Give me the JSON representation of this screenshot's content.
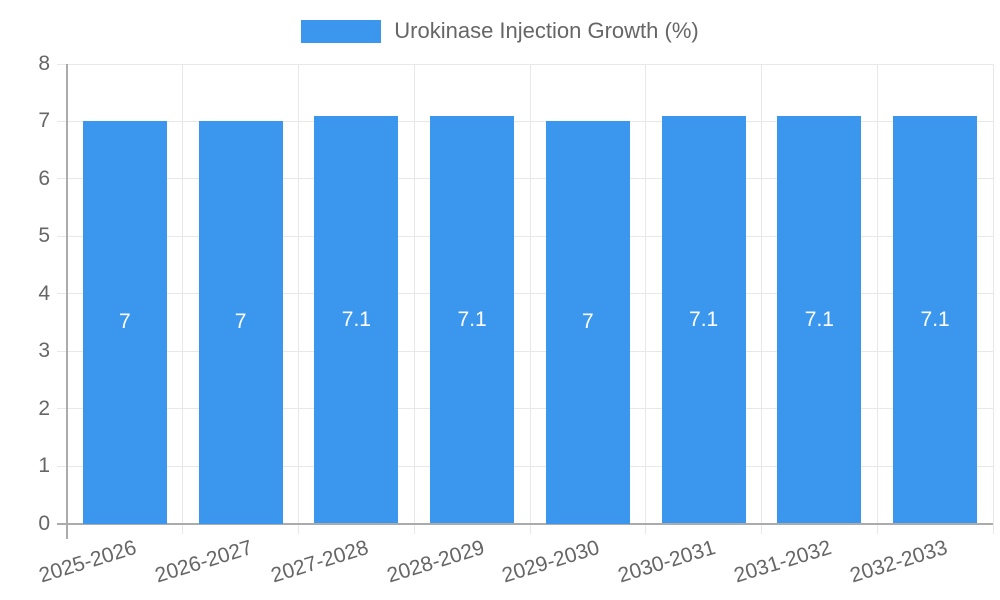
{
  "chart_data": {
    "type": "bar",
    "title": "",
    "xlabel": "",
    "ylabel": "",
    "categories": [
      "2025-2026",
      "2026-2027",
      "2027-2028",
      "2028-2029",
      "2029-2030",
      "2030-2031",
      "2031-2032",
      "2032-2033"
    ],
    "values": [
      7,
      7,
      7.1,
      7.1,
      7,
      7.1,
      7.1,
      7.1
    ],
    "bar_labels": [
      "7",
      "7",
      "7.1",
      "7.1",
      "7",
      "7.1",
      "7.1",
      "7.1"
    ],
    "ylim": [
      0,
      8
    ],
    "yticks": [
      0,
      1,
      2,
      3,
      4,
      5,
      6,
      7,
      8
    ],
    "grid": true,
    "legend": {
      "label": "Urokinase Injection Growth (%)",
      "position": "top"
    },
    "colors": {
      "bar": "#3a97ed",
      "value_label": "#ffffff",
      "axis_text": "#666666",
      "gridline": "#e8e8e8",
      "axis_line": "#ababab",
      "background": "#ffffff"
    }
  }
}
